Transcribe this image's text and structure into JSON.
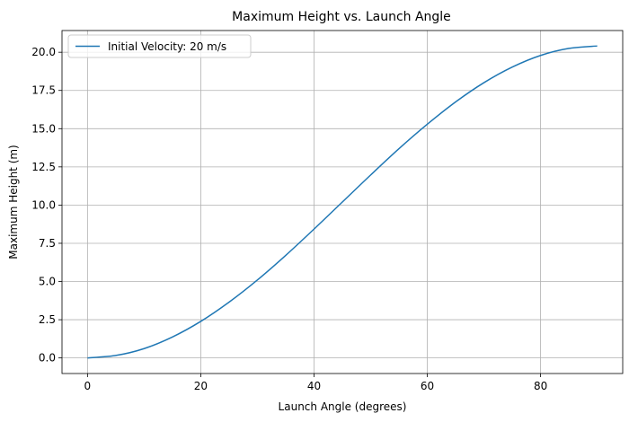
{
  "chart_data": {
    "type": "line",
    "title": "Maximum Height vs. Launch Angle",
    "xlabel": "Launch Angle (degrees)",
    "ylabel": "Maximum Height (m)",
    "xlim": [
      -4.5,
      94.5
    ],
    "ylim": [
      -1.02,
      21.42
    ],
    "x_ticks": [
      0,
      20,
      40,
      60,
      80
    ],
    "x_tick_labels": [
      "0",
      "20",
      "40",
      "60",
      "80"
    ],
    "y_ticks": [
      0,
      2.5,
      5,
      7.5,
      10,
      12.5,
      15,
      17.5,
      20
    ],
    "y_tick_labels": [
      "0.0",
      "2.5",
      "5.0",
      "7.5",
      "10.0",
      "12.5",
      "15.0",
      "17.5",
      "20.0"
    ],
    "grid": true,
    "legend_position": "top-left",
    "series": [
      {
        "name": "Initial Velocity: 20 m/s",
        "color": "#1f77b4",
        "x": [
          0,
          5,
          10,
          15,
          20,
          25,
          30,
          35,
          40,
          45,
          50,
          55,
          60,
          65,
          70,
          75,
          80,
          85,
          90
        ],
        "y": [
          0,
          0.16,
          0.61,
          1.37,
          2.39,
          3.65,
          5.1,
          6.71,
          8.43,
          10.2,
          11.97,
          13.69,
          15.29,
          16.75,
          18.01,
          19.03,
          19.79,
          20.25,
          20.41
        ]
      }
    ]
  }
}
